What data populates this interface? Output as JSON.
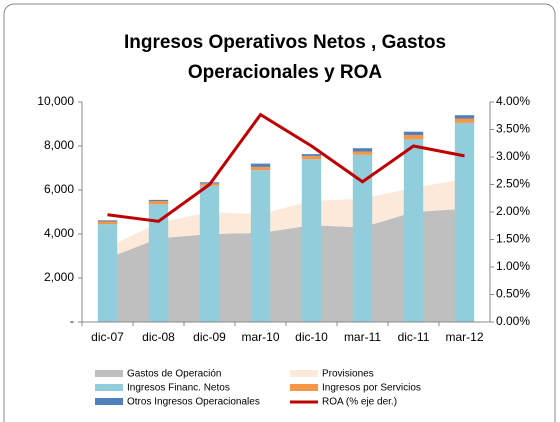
{
  "chart_data": {
    "type": "combo",
    "title": [
      "Ingresos Operativos Netos , Gastos",
      "Operacionales y ROA"
    ],
    "categories": [
      "dic-07",
      "dic-08",
      "dic-09",
      "mar-10",
      "dic-10",
      "mar-11",
      "dic-11",
      "mar-12"
    ],
    "series": [
      {
        "name": "Gastos de Operación",
        "kind": "area",
        "color": "#bfbfbf",
        "values": [
          2900,
          3800,
          4000,
          4050,
          4400,
          4300,
          5000,
          5150
        ]
      },
      {
        "name": "Provisiones",
        "kind": "area",
        "color": "#fde9d9",
        "values": [
          500,
          700,
          1000,
          850,
          1100,
          1300,
          1100,
          1350
        ]
      },
      {
        "name": "Ingresos Financ. Netos",
        "kind": "bar",
        "color": "#92cddc",
        "values": [
          4450,
          5350,
          6200,
          6900,
          7400,
          7600,
          8300,
          9050
        ]
      },
      {
        "name": "Ingresos por Servicios",
        "kind": "bar",
        "color": "#f79646",
        "values": [
          120,
          150,
          100,
          150,
          150,
          150,
          200,
          200
        ]
      },
      {
        "name": "Otros Ingresos Operacionales",
        "kind": "bar",
        "color": "#4f81bd",
        "values": [
          50,
          50,
          50,
          150,
          80,
          150,
          150,
          150
        ]
      },
      {
        "name": "ROA (% eje der.)",
        "kind": "line",
        "axis": "y2",
        "color": "#c00000",
        "values": [
          1.95,
          1.83,
          2.5,
          3.77,
          3.2,
          2.55,
          3.2,
          3.02
        ]
      }
    ],
    "ylim": [
      0,
      10000
    ],
    "yticks": [
      {
        "value": 0,
        "label": "-"
      },
      {
        "value": 2000,
        "label": "2,000"
      },
      {
        "value": 4000,
        "label": "4,000"
      },
      {
        "value": 6000,
        "label": "6,000"
      },
      {
        "value": 8000,
        "label": "8,000"
      },
      {
        "value": 10000,
        "label": "10,000"
      }
    ],
    "y2lim": [
      0,
      4
    ],
    "y2ticks": [
      {
        "value": 0,
        "label": "0.00%"
      },
      {
        "value": 0.5,
        "label": "0.50%"
      },
      {
        "value": 1,
        "label": "1.00%"
      },
      {
        "value": 1.5,
        "label": "1.50%"
      },
      {
        "value": 2,
        "label": "2.00%"
      },
      {
        "value": 2.5,
        "label": "2.50%"
      },
      {
        "value": 3,
        "label": "3.00%"
      },
      {
        "value": 3.5,
        "label": "3.50%"
      },
      {
        "value": 4,
        "label": "4.00%"
      }
    ],
    "grid": false
  }
}
